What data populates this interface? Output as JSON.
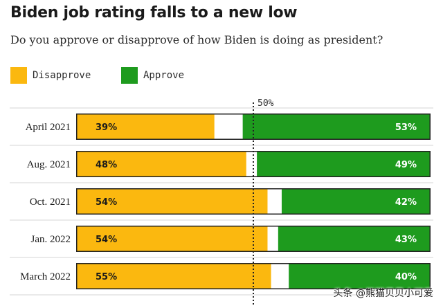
{
  "title": "Biden job rating falls to a new low",
  "subtitle": "Do you approve or disapprove of how Biden is doing as president?",
  "watermark": "头条 @熊猫贝贝小可爱",
  "colors": {
    "disapprove": "#fbb80f",
    "approve": "#1e9b1e",
    "track": "#222222",
    "grid": "#d4d4d4",
    "text": "#1a1a1a"
  },
  "chart_data": {
    "type": "bar",
    "orientation": "horizontal",
    "stacked": true,
    "xlim": [
      0,
      100
    ],
    "reference_line": {
      "value": 50,
      "label": "50%"
    },
    "categories": [
      "April 2021",
      "Aug. 2021",
      "Oct. 2021",
      "Jan. 2022",
      "March 2022"
    ],
    "series": [
      {
        "name": "Disapprove",
        "color": "#fbb80f",
        "align": "left",
        "values": [
          39,
          48,
          54,
          54,
          55
        ],
        "labels": [
          "39%",
          "48%",
          "54%",
          "54%",
          "55%"
        ]
      },
      {
        "name": "Approve",
        "color": "#1e9b1e",
        "align": "right",
        "values": [
          53,
          49,
          42,
          43,
          40
        ],
        "labels": [
          "53%",
          "49%",
          "42%",
          "43%",
          "40%"
        ]
      }
    ],
    "legend": {
      "position": "top-left",
      "items": [
        "Disapprove",
        "Approve"
      ]
    }
  }
}
